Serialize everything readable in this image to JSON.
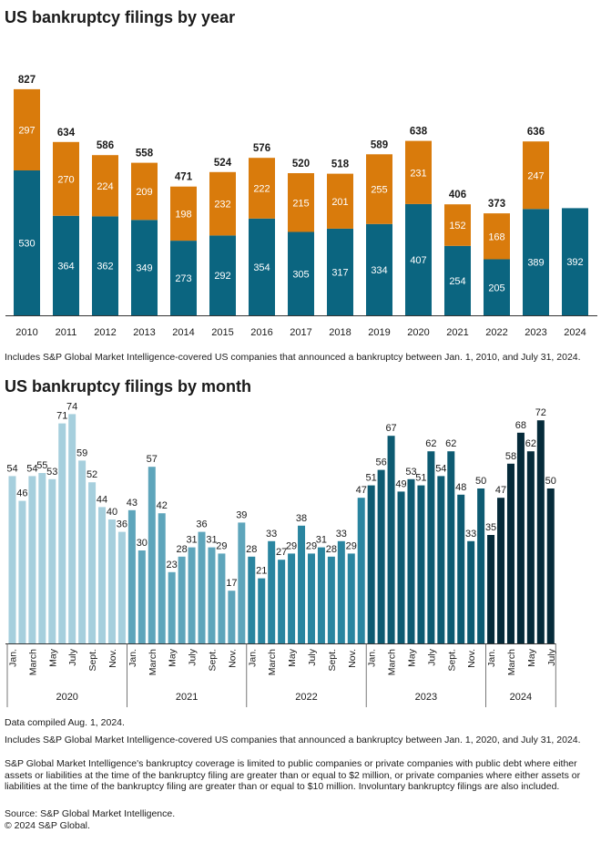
{
  "chart_data": [
    {
      "type": "bar",
      "stacked": true,
      "title": "US bankruptcy filings by year",
      "categories": [
        "2010",
        "2011",
        "2012",
        "2013",
        "2014",
        "2015",
        "2016",
        "2017",
        "2018",
        "2019",
        "2020",
        "2021",
        "2022",
        "2023",
        "2024"
      ],
      "series": [
        {
          "name": "",
          "color": "#0b6580",
          "values": [
            530,
            364,
            362,
            349,
            273,
            292,
            354,
            305,
            317,
            334,
            407,
            254,
            205,
            389,
            392
          ]
        },
        {
          "name": "",
          "color": "#d97b0c",
          "values": [
            297,
            270,
            224,
            209,
            198,
            232,
            222,
            215,
            201,
            255,
            231,
            152,
            168,
            247,
            null
          ]
        }
      ],
      "totals": [
        827,
        634,
        586,
        558,
        471,
        524,
        576,
        520,
        518,
        589,
        638,
        406,
        373,
        636,
        null
      ],
      "note": "Includes S&P Global Market Intelligence-covered US companies that announced a bankruptcy between Jan. 1, 2010, and July 31, 2024."
    },
    {
      "type": "bar",
      "title": "US bankruptcy filings by month",
      "years": [
        {
          "label": "2020",
          "color": "#a6cfdd",
          "tick_labels": [
            "Jan.",
            "",
            "March",
            "",
            "May",
            "",
            "July",
            "",
            "Sept.",
            "",
            "Nov.",
            ""
          ],
          "values": [
            54,
            46,
            54,
            55,
            53,
            71,
            74,
            59,
            52,
            44,
            40,
            36
          ]
        },
        {
          "label": "2021",
          "color": "#5ea5bb",
          "tick_labels": [
            "Jan.",
            "",
            "March",
            "",
            "May",
            "",
            "July",
            "",
            "Sept.",
            "",
            "Nov.",
            ""
          ],
          "values": [
            43,
            30,
            57,
            42,
            23,
            28,
            31,
            36,
            31,
            29,
            17,
            39
          ]
        },
        {
          "label": "2022",
          "color": "#2a85a0",
          "tick_labels": [
            "Jan.",
            "",
            "March",
            "",
            "May",
            "",
            "July",
            "",
            "Sept.",
            "",
            "Nov.",
            ""
          ],
          "values": [
            28,
            21,
            33,
            27,
            29,
            38,
            29,
            31,
            28,
            33,
            29,
            47
          ]
        },
        {
          "label": "2023",
          "color": "#0e5b72",
          "tick_labels": [
            "Jan.",
            "",
            "March",
            "",
            "May",
            "",
            "July",
            "",
            "Sept.",
            "",
            "Nov.",
            ""
          ],
          "values": [
            51,
            56,
            67,
            49,
            53,
            51,
            62,
            54,
            62,
            48,
            33,
            50
          ]
        },
        {
          "label": "2024",
          "color": "#062b3a",
          "tick_labels": [
            "Jan.",
            "",
            "March",
            "",
            "May",
            "",
            "July"
          ],
          "values": [
            35,
            47,
            58,
            68,
            62,
            72,
            50
          ]
        }
      ]
    }
  ],
  "footnotes": [
    "Data compiled Aug. 1, 2024.",
    "Includes S&P Global Market Intelligence-covered US companies that announced a bankruptcy between Jan. 1, 2020, and July 31, 2024.",
    "S&P Global Market Intelligence's bankruptcy coverage is limited to public companies or private companies with public debt where either assets or liabilities at the time of the bankruptcy filing are greater than or equal to $2 million, or private companies where either assets or liabilities at the time of the bankruptcy filing are greater than or equal to $10 million. Involuntary bankruptcy filings are also included.",
    "Source: S&P Global Market Intelligence.",
    "© 2024 S&P Global."
  ]
}
